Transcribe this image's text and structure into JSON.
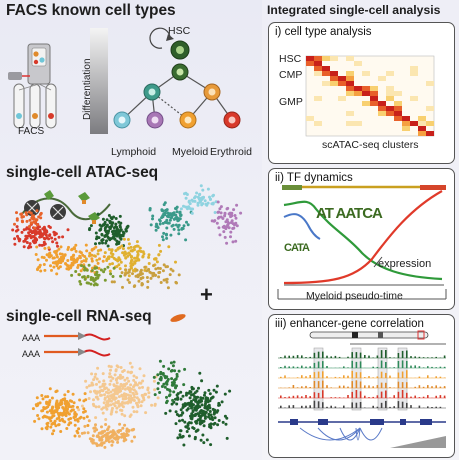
{
  "left": {
    "facs_title": "FACS known cell types",
    "facs_label": "FACS",
    "differentiation_label": "Differentiation",
    "hsc_label": "HSC",
    "lineages": [
      "Lymphoid",
      "Myeloid",
      "Erythroid"
    ],
    "atac_title": "single-cell ATAC-seq",
    "rna_title": "single-cell RNA-seq",
    "aaa_label": "AAA",
    "plus_sign": "+"
  },
  "right": {
    "title": "Integrated single-cell analysis",
    "panel1": {
      "title": "i) cell type analysis",
      "row_labels": [
        "HSC",
        "CMP",
        "GMP"
      ],
      "xlabel": "scATAC-seq clusters"
    },
    "panel2": {
      "title": "ii) TF dynamics",
      "motif1": "AT AATCA",
      "motif2": "CATA",
      "expression_label": "expression",
      "xlabel": "Myeloid pseudo-time"
    },
    "panel3": {
      "title": "iii) enhancer-gene correlation"
    }
  },
  "colors": {
    "hsc": "#2f6b2a",
    "lymphoid": "#8fd3e0",
    "myeloid": "#f0a030",
    "erythroid": "#d93a2a",
    "gmp_purple": "#b07ab8",
    "accent_green": "#1f5e2c"
  }
}
